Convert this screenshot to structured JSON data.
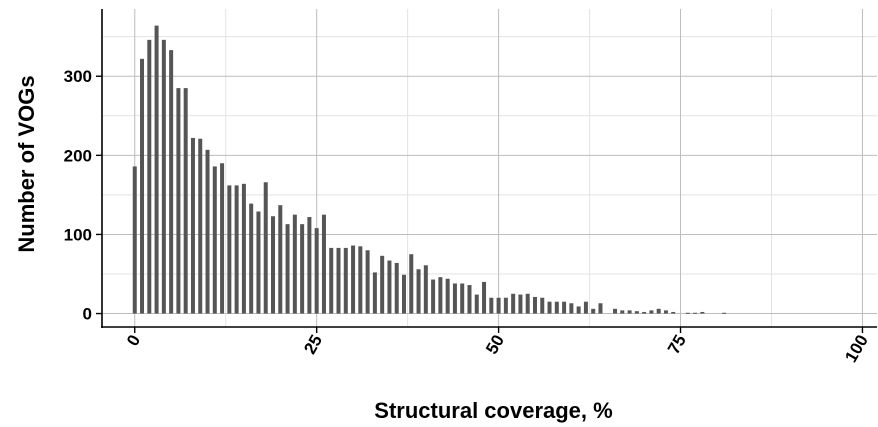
{
  "chart_data": {
    "type": "bar",
    "title": "",
    "xlabel": "Structural coverage, %",
    "ylabel": "Number of VOGs",
    "xlim": [
      -4.5,
      102
    ],
    "ylim": [
      -17,
      385
    ],
    "x_ticks": [
      "0",
      "25",
      "50",
      "75",
      "100"
    ],
    "y_ticks": [
      "0",
      "100",
      "200",
      "300"
    ],
    "grid": true,
    "bar_color": "#555555",
    "gridline_major_color": "#bdbdbd",
    "gridline_minor_color": "#e3e3e3",
    "x": [
      0,
      1,
      2,
      3,
      4,
      5,
      6,
      7,
      8,
      9,
      10,
      11,
      12,
      13,
      14,
      15,
      16,
      17,
      18,
      19,
      20,
      21,
      22,
      23,
      24,
      25,
      26,
      27,
      28,
      29,
      30,
      31,
      32,
      33,
      34,
      35,
      36,
      37,
      38,
      39,
      40,
      41,
      42,
      43,
      44,
      45,
      46,
      47,
      48,
      49,
      50,
      51,
      52,
      53,
      54,
      55,
      56,
      57,
      58,
      59,
      60,
      61,
      62,
      63,
      64,
      65,
      66,
      67,
      68,
      69,
      70,
      71,
      72,
      73,
      74,
      75,
      76,
      77,
      78,
      79,
      80,
      81,
      82,
      83,
      84,
      85,
      86,
      87,
      88,
      89,
      90,
      91,
      92,
      93,
      94,
      95,
      96,
      97,
      98,
      99,
      100
    ],
    "values": [
      186,
      322,
      346,
      364,
      346,
      333,
      285,
      285,
      222,
      221,
      207,
      186,
      190,
      162,
      162,
      164,
      139,
      129,
      166,
      123,
      137,
      113,
      125,
      113,
      122,
      108,
      125,
      83,
      83,
      83,
      86,
      85,
      80,
      52,
      73,
      67,
      64,
      49,
      75,
      56,
      61,
      43,
      46,
      44,
      38,
      38,
      36,
      24,
      40,
      20,
      20,
      20,
      25,
      24,
      25,
      21,
      20,
      15,
      15,
      15,
      13,
      9,
      15,
      6,
      13,
      0,
      6,
      4,
      4,
      3,
      2,
      4,
      6,
      4,
      2,
      0,
      1,
      1,
      2,
      0,
      0,
      1,
      0,
      0,
      0,
      0,
      0,
      0,
      0,
      0,
      0,
      0,
      0,
      0,
      0,
      0,
      0,
      0,
      0,
      0,
      0
    ]
  }
}
